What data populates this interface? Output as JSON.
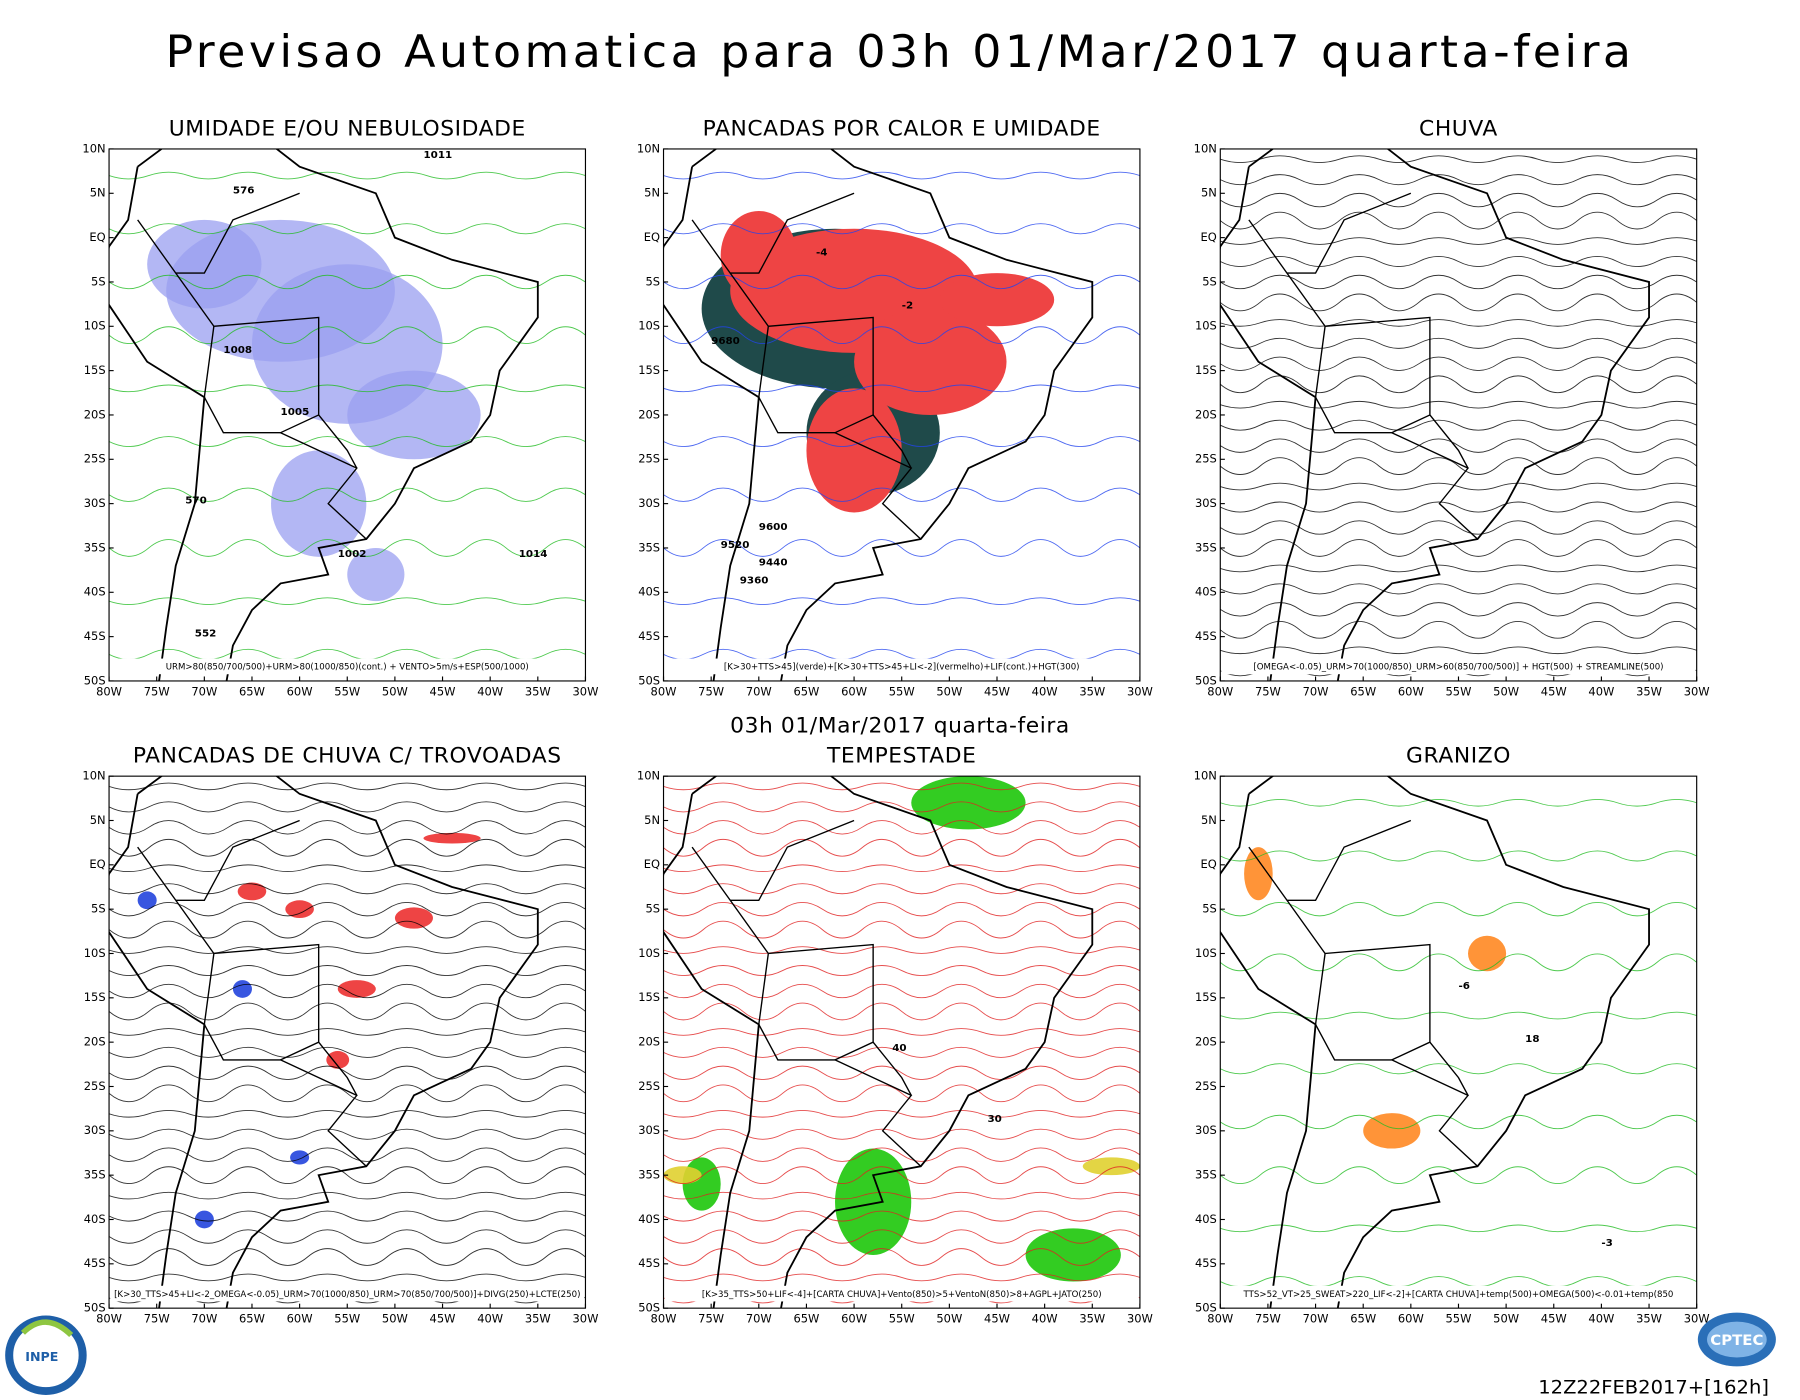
{
  "header": {
    "title": "Previsao Automatica  para 03h 01/Mar/2017 quarta-feira"
  },
  "subtitle": "03h 01/Mar/2017 quarta-feira",
  "footer": "12Z22FEB2017+[162h]",
  "axes": {
    "lat": [
      "10N",
      "5N",
      "EQ",
      "5S",
      "10S",
      "15S",
      "20S",
      "25S",
      "30S",
      "35S",
      "40S",
      "45S",
      "50S"
    ],
    "lon": [
      "80W",
      "75W",
      "70W",
      "65W",
      "60W",
      "55W",
      "50W",
      "45W",
      "40W",
      "35W",
      "30W"
    ]
  },
  "panels": [
    {
      "title": "UMIDADE E/OU NEBULOSIDADE",
      "caption": "URM>80(850/700/500)+URM>80(1000/850)(cont.) + VENTO>5m/s+ESP(500/1000)",
      "labels": [
        "1011",
        "576",
        "1008",
        "1005",
        "1002",
        "1014",
        "570",
        "552"
      ]
    },
    {
      "title": "PANCADAS POR CALOR E UMIDADE",
      "caption": "[K>30+TTS>45](verde)+[K>30+TTS>45+LI<-2](vermelho)+LIF(cont.)+HGT(300)",
      "labels": [
        "9680",
        "9600",
        "9520",
        "9440",
        "9360",
        "-2",
        "-4"
      ]
    },
    {
      "title": "CHUVA",
      "caption": "[OMEGA<-0.05)_URM>70(1000/850)_URM>60(850/700/500)] + HGT(500) + STREAMLINE(500)",
      "labels": []
    },
    {
      "title": "PANCADAS DE CHUVA C/ TROVOADAS",
      "caption": "[K>30_TTS>45+LI<-2_OMEGA<-0.05)_URM>70(1000/850)_URM>70(850/700/500)]+DIVG(250)+LCTE(250)",
      "labels": []
    },
    {
      "title": "TEMPESTADE",
      "caption": "[K>35_TTS>50+LIF<-4]+[CARTA CHUVA]+Vento(850)>5+VentoN(850)>8+AGPL+JATO(250)",
      "labels": [
        "40",
        "30"
      ]
    },
    {
      "title": "GRANIZO",
      "caption": "TTS>52_VT>25_SWEAT>220_LIF<-2]+[CARTA CHUVA]+temp(500)+OMEGA(500)<-0.01+temp(850",
      "labels": [
        "18",
        "-6",
        "-3"
      ]
    }
  ],
  "logos": {
    "left": "INPE",
    "right": "CPTEC"
  }
}
